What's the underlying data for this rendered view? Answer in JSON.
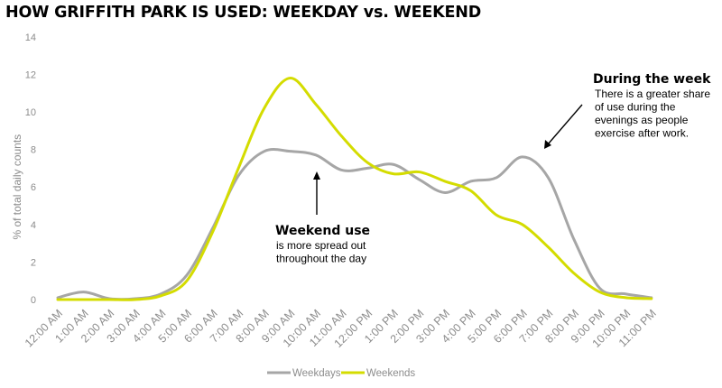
{
  "chart_data": {
    "type": "line",
    "title": "HOW GRIFFITH PARK IS USED: WEEKDAY vs. WEEKEND",
    "xlabel": "",
    "ylabel": "% of total daily counts",
    "ylim": [
      0,
      14
    ],
    "yticks": [
      0,
      2,
      4,
      6,
      8,
      10,
      12,
      14
    ],
    "categories": [
      "12:00 AM",
      "1:00 AM",
      "2:00 AM",
      "3:00 AM",
      "4:00 AM",
      "5:00 AM",
      "6:00 AM",
      "7:00 AM",
      "8:00 AM",
      "9:00 AM",
      "10:00 AM",
      "11:00 AM",
      "12:00 PM",
      "1:00 PM",
      "2:00 PM",
      "3:00 PM",
      "4:00 PM",
      "5:00 PM",
      "6:00 PM",
      "7:00 PM",
      "8:00 PM",
      "9:00 PM",
      "10:00 PM",
      "11:00 PM"
    ],
    "series": [
      {
        "name": "Weekdays",
        "color": "#a6a6a6",
        "values": [
          0.1,
          0.4,
          0.05,
          0.05,
          0.3,
          1.3,
          3.8,
          6.6,
          7.9,
          7.9,
          7.7,
          6.9,
          7.0,
          7.2,
          6.4,
          5.7,
          6.3,
          6.5,
          7.6,
          6.5,
          3.2,
          0.6,
          0.3,
          0.1
        ]
      },
      {
        "name": "Weekends",
        "color": "#d4dc00",
        "values": [
          0.0,
          0.0,
          0.0,
          0.0,
          0.2,
          1.0,
          3.6,
          7.0,
          10.2,
          11.8,
          10.4,
          8.7,
          7.3,
          6.7,
          6.8,
          6.3,
          5.8,
          4.5,
          4.0,
          2.8,
          1.4,
          0.4,
          0.1,
          0.05
        ]
      }
    ],
    "annotations": [
      {
        "heading": "During the week",
        "body": [
          "There is a greater share",
          "of use during the",
          "evenings as people",
          "exercise after work."
        ]
      },
      {
        "heading": "Weekend use",
        "body": [
          "is more spread out",
          "throughout the day"
        ]
      }
    ],
    "grid": false,
    "legend_position": "bottom"
  }
}
